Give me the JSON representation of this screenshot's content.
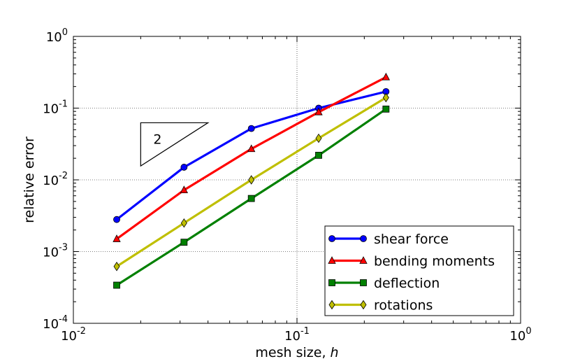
{
  "chart_data": {
    "type": "line",
    "xscale": "log",
    "yscale": "log",
    "xlim": [
      0.01,
      1
    ],
    "ylim": [
      0.0001,
      1
    ],
    "xlabel_text": "mesh size, ",
    "xlabel_var": "h",
    "ylabel": "relative error",
    "grid": true,
    "legend_position": "lower-right",
    "x_ticks": [
      {
        "value": 0.01,
        "base": "10",
        "exp": "-2"
      },
      {
        "value": 0.1,
        "base": "10",
        "exp": "-1"
      },
      {
        "value": 1,
        "base": "10",
        "exp": "0"
      }
    ],
    "y_ticks": [
      {
        "value": 0.0001,
        "base": "10",
        "exp": "-4"
      },
      {
        "value": 0.001,
        "base": "10",
        "exp": "-3"
      },
      {
        "value": 0.01,
        "base": "10",
        "exp": "-2"
      },
      {
        "value": 0.1,
        "base": "10",
        "exp": "-1"
      },
      {
        "value": 1,
        "base": "10",
        "exp": "0"
      }
    ],
    "x": [
      0.015625,
      0.03125,
      0.0625,
      0.125,
      0.25
    ],
    "series": [
      {
        "name": "shear force",
        "marker": "circle",
        "color": "#0000ff",
        "markerColor": "#0000ff",
        "values": [
          0.0028,
          0.015,
          0.052,
          0.1,
          0.17
        ]
      },
      {
        "name": "bending moments",
        "marker": "triangle",
        "color": "#ff0000",
        "markerColor": "#ff0000",
        "values": [
          0.0015,
          0.0072,
          0.027,
          0.088,
          0.27
        ]
      },
      {
        "name": "deflection",
        "marker": "square",
        "color": "#008000",
        "markerColor": "#008000",
        "values": [
          0.00034,
          0.00135,
          0.0055,
          0.022,
          0.097
        ]
      },
      {
        "name": "rotations",
        "marker": "diamond",
        "color": "#bfbf00",
        "markerColor": "#bfbf00",
        "values": [
          0.00062,
          0.0025,
          0.01,
          0.038,
          0.14
        ]
      }
    ],
    "slope_annotation": {
      "label": "2",
      "x1": 0.02,
      "x2": 0.04,
      "y_base": 0.015625,
      "y_top": 0.0625
    }
  }
}
